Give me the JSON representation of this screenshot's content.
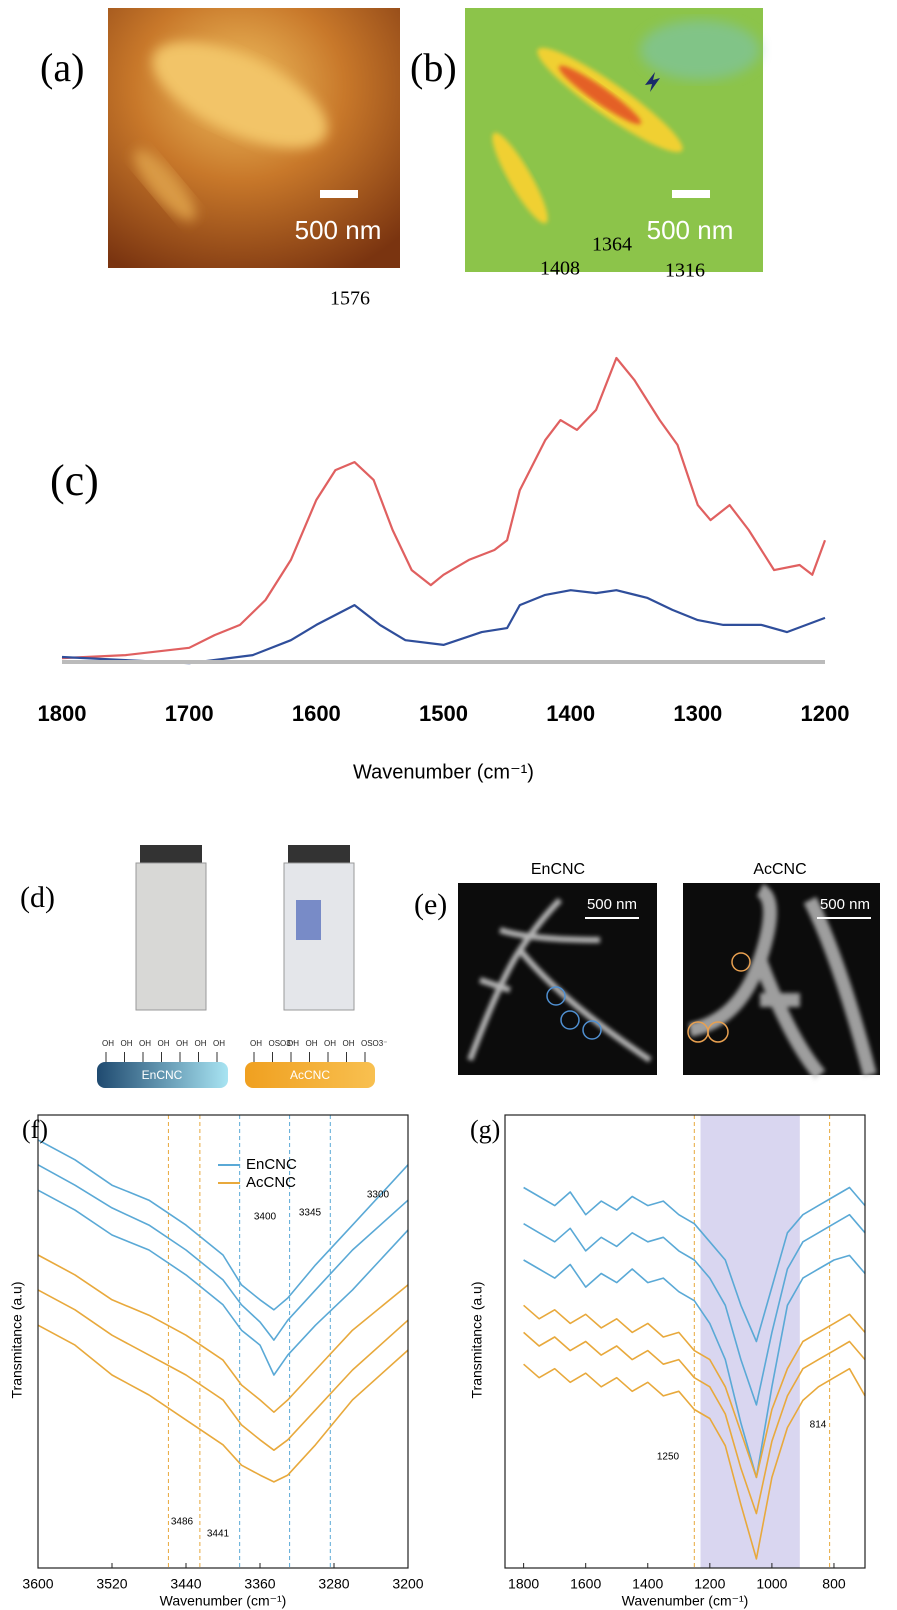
{
  "panels": {
    "a": {
      "label": "(a)",
      "scale": "500 nm"
    },
    "b": {
      "label": "(b)",
      "scale": "500 nm"
    },
    "d": {
      "label": "(d)",
      "en_name": "EnCNC",
      "ac_name": "AcCNC",
      "en_groups": [
        "OH",
        "OH",
        "OH",
        "OH",
        "OH",
        "OH",
        "OH"
      ],
      "ac_groups": [
        "OH",
        "OSO3⁻",
        "OH",
        "OH",
        "OH",
        "OH",
        "OSO3⁻"
      ]
    },
    "e": {
      "label": "(e)",
      "titles": [
        "EnCNC",
        "AcCNC"
      ],
      "scales": [
        "500 nm",
        "500 nm"
      ]
    }
  },
  "chart_data": [
    {
      "type": "line",
      "panel_label": "(c)",
      "x_label": "Wavenumber (cm⁻¹)",
      "xlim": [
        1800,
        1200
      ],
      "xticks": [
        1800,
        1700,
        1600,
        1500,
        1400,
        1300,
        1200
      ],
      "ylim": [
        0,
        100
      ],
      "annotations": [
        "1576",
        "1408",
        "1364",
        "1316"
      ],
      "series": [
        {
          "color": "#e06060",
          "x": [
            1800,
            1750,
            1700,
            1680,
            1660,
            1640,
            1620,
            1600,
            1585,
            1570,
            1555,
            1540,
            1525,
            1510,
            1500,
            1480,
            1460,
            1450,
            1440,
            1420,
            1408,
            1395,
            1380,
            1364,
            1350,
            1330,
            1316,
            1300,
            1290,
            1275,
            1260,
            1240,
            1220,
            1210,
            1200
          ],
          "values": [
            1.9,
            2.7,
            4.7,
            8.2,
            11,
            17.8,
            28.8,
            45.2,
            53.4,
            55.6,
            50.7,
            37,
            26,
            21.9,
            24.7,
            28.8,
            31.5,
            34.2,
            47.9,
            61.6,
            67.1,
            64.4,
            69.9,
            84.1,
            78.1,
            67.1,
            60.3,
            43.8,
            39.7,
            43.8,
            37,
            26,
            27.4,
            24.7,
            34.2
          ]
        },
        {
          "color": "#2f4e9b",
          "x": [
            1800,
            1700,
            1650,
            1620,
            1600,
            1570,
            1550,
            1530,
            1500,
            1470,
            1450,
            1440,
            1420,
            1400,
            1380,
            1364,
            1340,
            1320,
            1300,
            1280,
            1250,
            1230,
            1200
          ],
          "values": [
            2.2,
            0.5,
            2.7,
            6.8,
            11,
            16.4,
            11,
            6.8,
            5.5,
            9,
            10.1,
            16.4,
            19.2,
            20.5,
            19.7,
            20.5,
            18.4,
            15.1,
            12.3,
            11,
            11,
            9,
            12.9
          ]
        }
      ]
    },
    {
      "type": "line",
      "panel_label": "(f)",
      "x_label": "Wavenumber (cm⁻¹)",
      "y_label": "Transmitance (a.u)",
      "xlim": [
        3600,
        3200
      ],
      "xticks": [
        3600,
        3520,
        3440,
        3360,
        3280,
        3200
      ],
      "ylim": [
        0,
        100
      ],
      "legend": "upper right",
      "annotations": [
        "3400",
        "3345",
        "3300",
        "3486",
        "3441"
      ],
      "vlines": [
        {
          "value": 3459,
          "color": "#e8a93c"
        },
        {
          "value": 3425,
          "color": "#e8a93c"
        },
        {
          "value": 3382,
          "color": "#5aa9d6"
        },
        {
          "value": 3328,
          "color": "#5aa9d6"
        },
        {
          "value": 3284,
          "color": "#5aa9d6"
        }
      ],
      "x": [
        3600,
        3560,
        3520,
        3480,
        3440,
        3400,
        3380,
        3360,
        3345,
        3330,
        3300,
        3260,
        3200
      ],
      "series": [
        {
          "name": "EnCNC",
          "color": "#5aa9d6",
          "curves": [
            [
              94.5,
              90.1,
              84.5,
              81.2,
              75.7,
              69.1,
              62.5,
              59.2,
              57.0,
              59.6,
              66.9,
              75.7,
              89.0
            ],
            [
              89.0,
              84.5,
              79.5,
              75.7,
              70.2,
              63.6,
              58.1,
              54.3,
              50.3,
              54.7,
              61.4,
              70.2,
              81.2
            ],
            [
              83.4,
              79.0,
              73.5,
              70.2,
              64.7,
              58.1,
              52.5,
              49.2,
              42.6,
              47.0,
              53.6,
              61.4,
              74.6
            ]
          ]
        },
        {
          "name": "AcCNC",
          "color": "#e8a93c",
          "curves": [
            [
              69.1,
              64.7,
              59.2,
              55.8,
              51.4,
              45.9,
              40.4,
              37.1,
              34.4,
              37.1,
              43.7,
              52.5,
              62.5
            ],
            [
              61.4,
              57.0,
              51.4,
              47.0,
              42.6,
              37.1,
              31.6,
              28.3,
              26.0,
              28.3,
              34.9,
              43.7,
              54.7
            ],
            [
              53.6,
              49.2,
              42.6,
              38.2,
              32.7,
              27.2,
              22.7,
              20.5,
              19.0,
              20.5,
              27.2,
              37.1,
              48.1
            ]
          ]
        }
      ]
    },
    {
      "type": "line",
      "panel_label": "(g)",
      "x_label": "Wavenumber (cm⁻¹)",
      "y_label": "Transmitance (a.u)",
      "xlim": [
        1860,
        700
      ],
      "xticks": [
        1800,
        1600,
        1400,
        1200,
        1000,
        800
      ],
      "ylim": [
        0,
        100
      ],
      "annotations": [
        "1250",
        "814"
      ],
      "shade": [
        1230,
        910
      ],
      "vlines": [
        {
          "value": 1250,
          "color": "#e8a93c"
        },
        {
          "value": 814,
          "color": "#e8a93c"
        }
      ],
      "x": [
        1800,
        1750,
        1700,
        1650,
        1600,
        1550,
        1500,
        1450,
        1400,
        1350,
        1300,
        1250,
        1200,
        1150,
        1100,
        1050,
        1000,
        950,
        900,
        850,
        800,
        750,
        700
      ],
      "series": [
        {
          "color": "#5aa9d6",
          "curves": [
            [
              84,
              82,
              80,
              83,
              78,
              81,
              79,
              82,
              80,
              81,
              78,
              76,
              72,
              68,
              58,
              50,
              62,
              74,
              78,
              80,
              82,
              84,
              80
            ],
            [
              76,
              74,
              72,
              75,
              70,
              73,
              71,
              74,
              72,
              73,
              70,
              68,
              64,
              58,
              46,
              36,
              52,
              66,
              72,
              74,
              76,
              78,
              74
            ],
            [
              68,
              66,
              64,
              67,
              62,
              65,
              63,
              66,
              63,
              64,
              61,
              59,
              54,
              46,
              32,
              20,
              40,
              58,
              64,
              66,
              68,
              69,
              65
            ]
          ]
        },
        {
          "color": "#e8a93c",
          "curves": [
            [
              58,
              55,
              57,
              54,
              56,
              53,
              55,
              52,
              54,
              51,
              52,
              48,
              46,
              40,
              30,
              20,
              35,
              44,
              50,
              52,
              54,
              56,
              52
            ],
            [
              52,
              49,
              51,
              48,
              50,
              47,
              49,
              46,
              48,
              45,
              46,
              42,
              40,
              34,
              22,
              12,
              28,
              38,
              44,
              46,
              48,
              50,
              46
            ],
            [
              45,
              42,
              44,
              41,
              43,
              40,
              42,
              39,
              41,
              38,
              39,
              35,
              33,
              27,
              14,
              2,
              20,
              31,
              37,
              40,
              42,
              44,
              38
            ]
          ]
        }
      ]
    }
  ]
}
